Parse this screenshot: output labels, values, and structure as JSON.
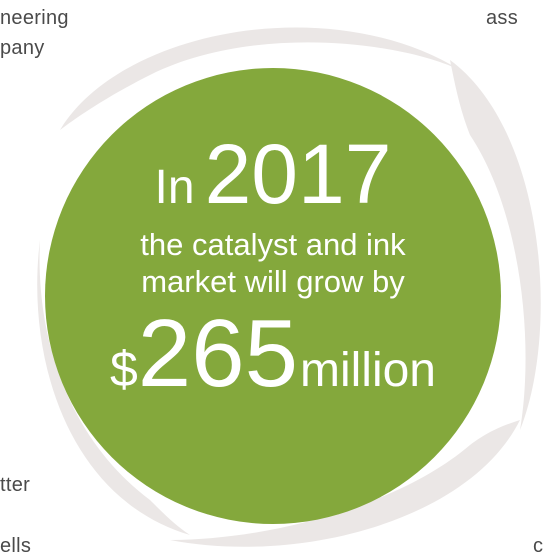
{
  "colors": {
    "circle_fill": "#84a83c",
    "swirl_fill": "#ebe7e6",
    "text_on_circle": "#ffffff",
    "fragment_text": "#4a4a4a"
  },
  "fragments": {
    "top_left_line1": "neering",
    "top_left_line2": "pany",
    "top_right": "ass",
    "bottom_left_line1": "tter",
    "bottom_left_line2": "ells",
    "bottom_right": "c"
  },
  "headline": {
    "prefix": "In",
    "year": "2017",
    "line1": "the catalyst and ink",
    "line2": "market will grow by",
    "currency": "$",
    "amount": "265",
    "unit": "million"
  }
}
